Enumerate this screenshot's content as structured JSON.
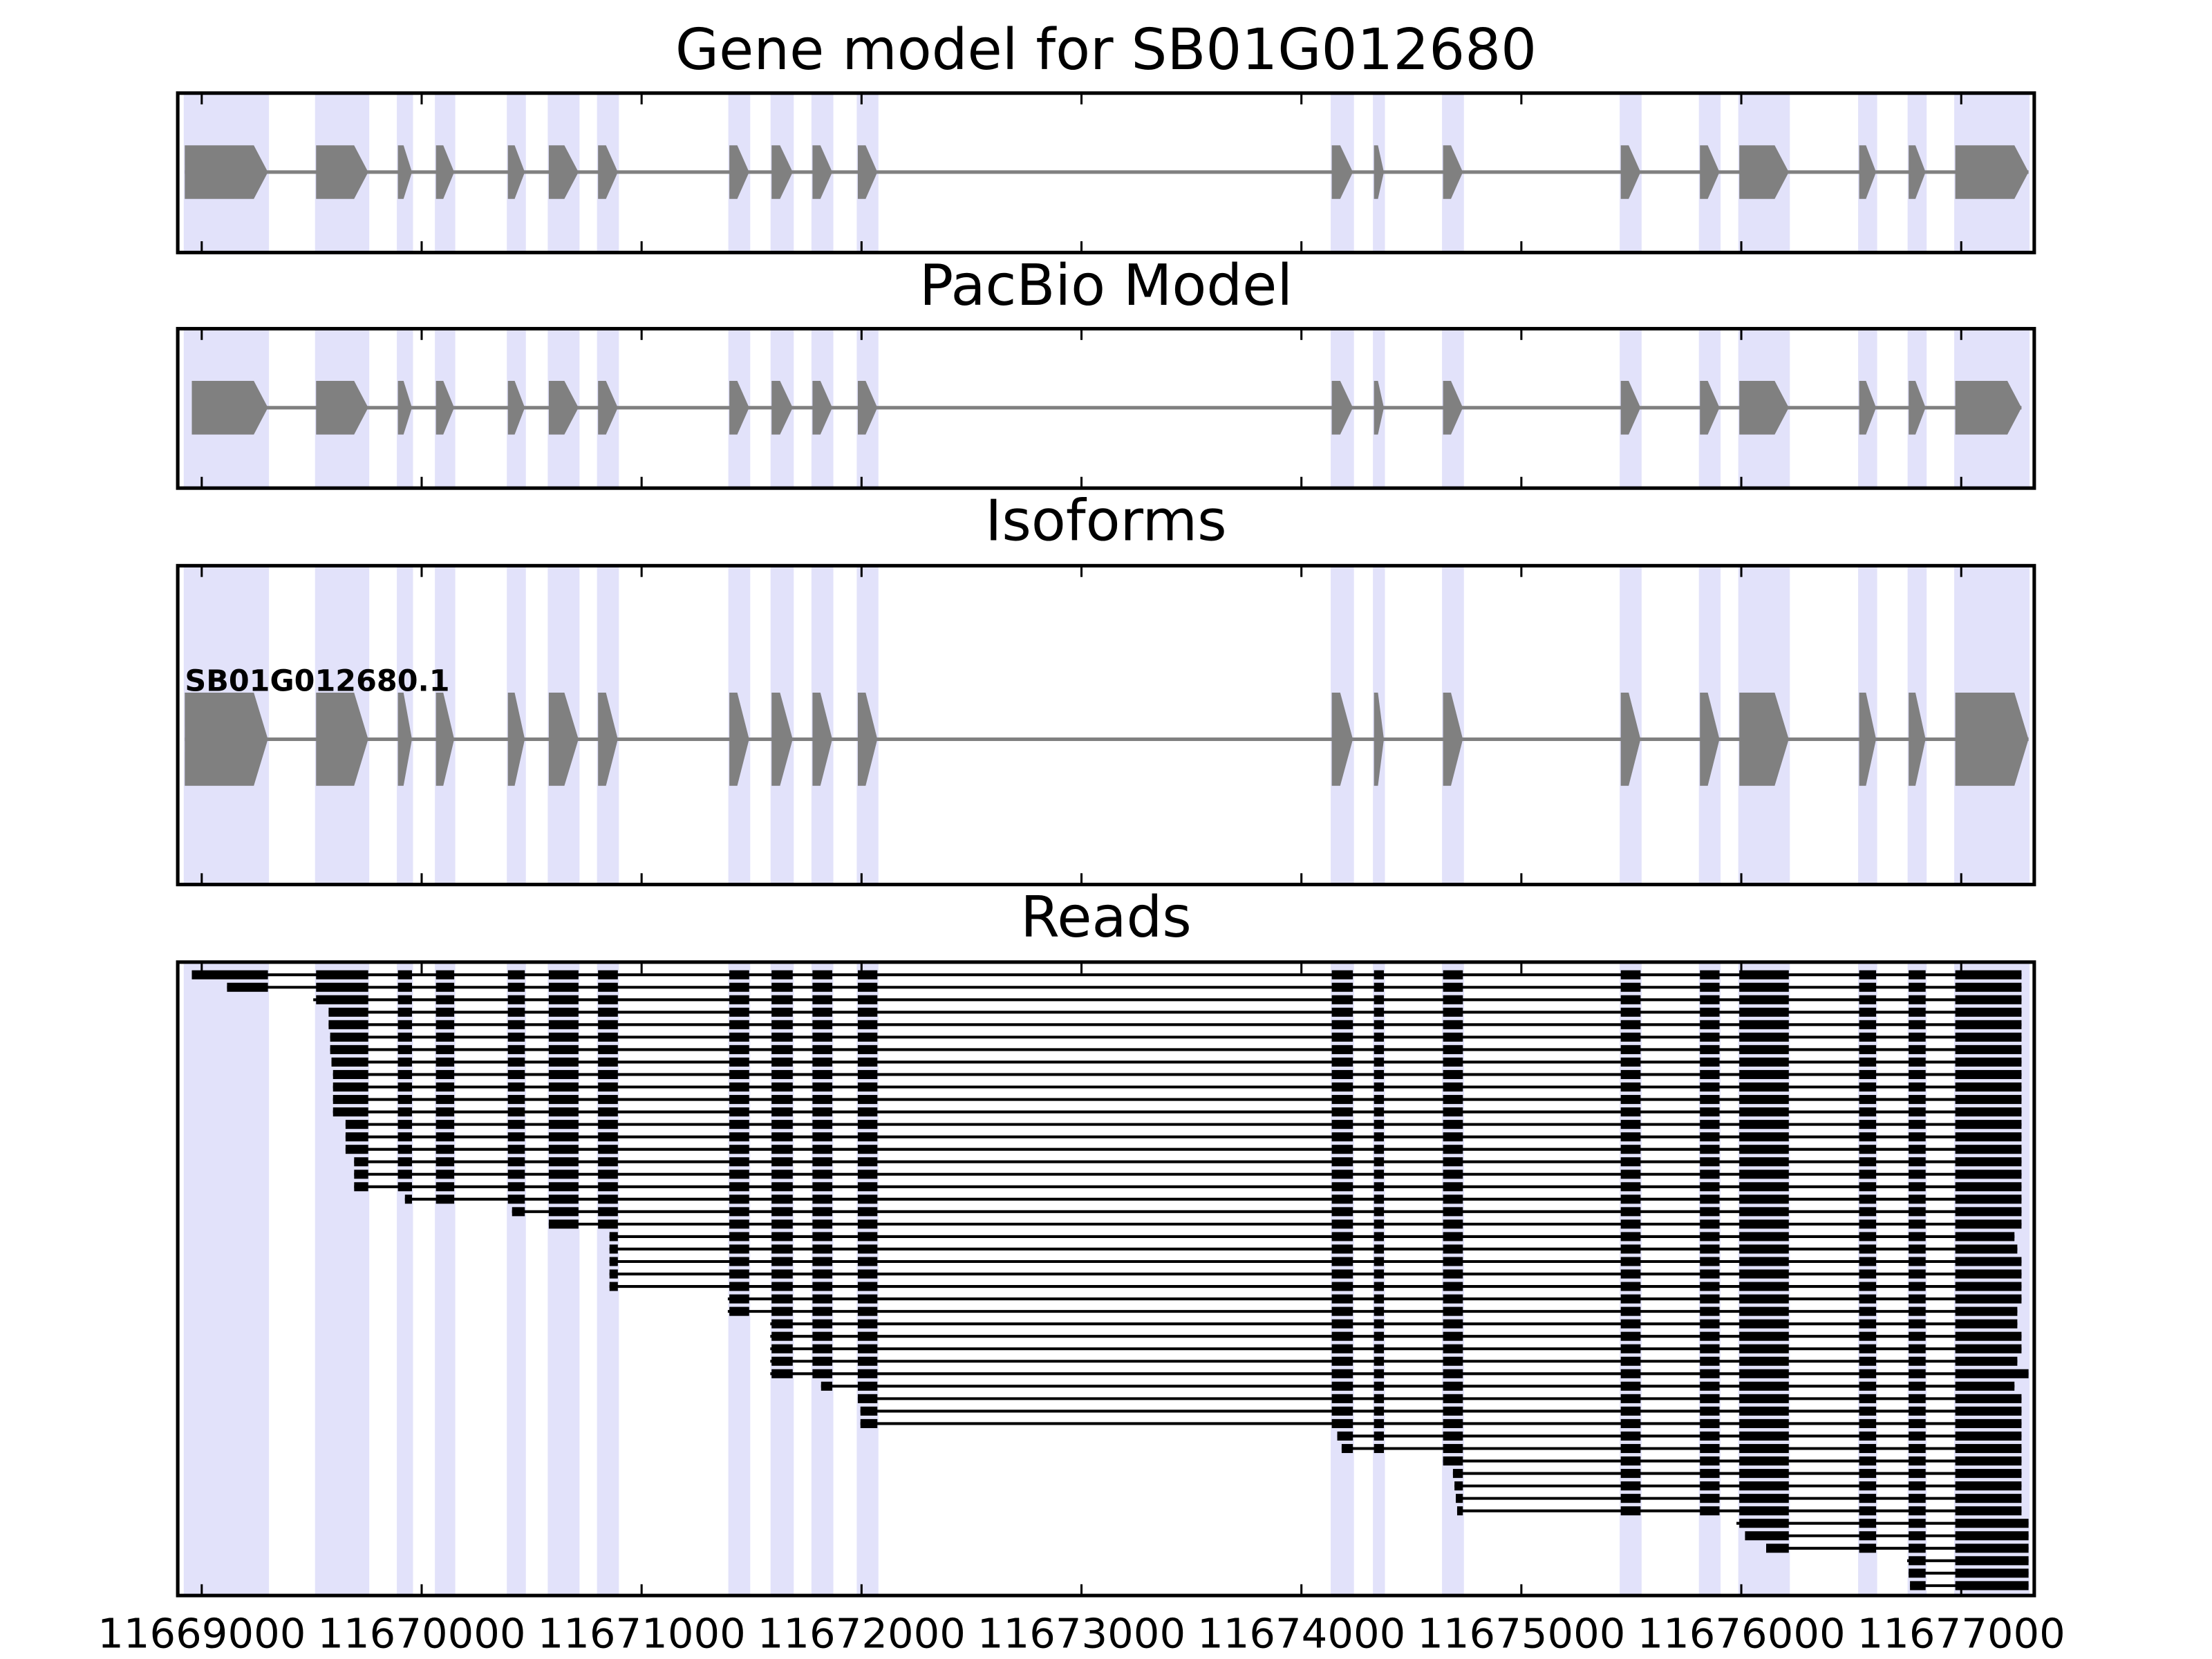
{
  "chart_data": [
    {
      "type": "gene_model",
      "title": "Gene model for SB01G012680",
      "color": "#808080",
      "shade_color": "#e2e2fa",
      "exons": [
        [
          11668923,
          11669301
        ],
        [
          11669520,
          11669757
        ],
        [
          11669892,
          11669956
        ],
        [
          11670065,
          11670148
        ],
        [
          11670392,
          11670469
        ],
        [
          11670578,
          11670713
        ],
        [
          11670802,
          11670892
        ],
        [
          11671399,
          11671489
        ],
        [
          11671591,
          11671687
        ],
        [
          11671777,
          11671867
        ],
        [
          11671983,
          11672072
        ],
        [
          11674138,
          11674234
        ],
        [
          11674330,
          11674375
        ],
        [
          11674644,
          11674734
        ],
        [
          11675452,
          11675542
        ],
        [
          11675812,
          11675901
        ],
        [
          11675991,
          11676216
        ],
        [
          11676536,
          11676613
        ],
        [
          11676761,
          11676838
        ],
        [
          11676973,
          11677306
        ]
      ]
    },
    {
      "type": "gene_model",
      "title": "PacBio Model",
      "color": "#808080",
      "exons": [
        [
          11668955,
          11669301
        ],
        [
          11669520,
          11669757
        ],
        [
          11669892,
          11669956
        ],
        [
          11670065,
          11670148
        ],
        [
          11670392,
          11670469
        ],
        [
          11670578,
          11670713
        ],
        [
          11670802,
          11670892
        ],
        [
          11671399,
          11671489
        ],
        [
          11671591,
          11671687
        ],
        [
          11671777,
          11671867
        ],
        [
          11671983,
          11672072
        ],
        [
          11674138,
          11674234
        ],
        [
          11674330,
          11674375
        ],
        [
          11674644,
          11674734
        ],
        [
          11675452,
          11675542
        ],
        [
          11675812,
          11675901
        ],
        [
          11675991,
          11676216
        ],
        [
          11676536,
          11676613
        ],
        [
          11676761,
          11676838
        ],
        [
          11676973,
          11677274
        ]
      ]
    },
    {
      "type": "isoforms",
      "title": "Isoforms",
      "color": "#808080",
      "isoform_name": "SB01G012680.1",
      "exons": [
        [
          11668923,
          11669301
        ],
        [
          11669520,
          11669757
        ],
        [
          11669892,
          11669956
        ],
        [
          11670065,
          11670148
        ],
        [
          11670392,
          11670469
        ],
        [
          11670578,
          11670713
        ],
        [
          11670802,
          11670892
        ],
        [
          11671399,
          11671489
        ],
        [
          11671591,
          11671687
        ],
        [
          11671777,
          11671867
        ],
        [
          11671983,
          11672072
        ],
        [
          11674138,
          11674234
        ],
        [
          11674330,
          11674375
        ],
        [
          11674644,
          11674734
        ],
        [
          11675452,
          11675542
        ],
        [
          11675812,
          11675901
        ],
        [
          11675991,
          11676216
        ],
        [
          11676536,
          11676613
        ],
        [
          11676761,
          11676838
        ],
        [
          11676973,
          11677306
        ]
      ]
    },
    {
      "type": "reads",
      "title": "Reads",
      "color": "#000000",
      "xlim": [
        11668891,
        11677332
      ],
      "xticks": [
        11669000,
        11670000,
        11671000,
        11672000,
        11673000,
        11674000,
        11675000,
        11676000,
        11677000
      ],
      "reads": [
        [
          11668955,
          11677274
        ],
        [
          11669115,
          11677274
        ],
        [
          11669507,
          11677274
        ],
        [
          11669577,
          11677274
        ],
        [
          11669577,
          11677274
        ],
        [
          11669584,
          11677274
        ],
        [
          11669584,
          11677274
        ],
        [
          11669590,
          11677274
        ],
        [
          11669597,
          11677274
        ],
        [
          11669597,
          11677274
        ],
        [
          11669597,
          11677274
        ],
        [
          11669597,
          11677274
        ],
        [
          11669654,
          11677274
        ],
        [
          11669654,
          11677274
        ],
        [
          11669654,
          11677274
        ],
        [
          11669693,
          11677274
        ],
        [
          11669693,
          11677274
        ],
        [
          11669693,
          11677274
        ],
        [
          11669924,
          11677274
        ],
        [
          11670411,
          11677274
        ],
        [
          11670578,
          11677274
        ],
        [
          11670854,
          11677242
        ],
        [
          11670854,
          11677255
        ],
        [
          11670854,
          11677274
        ],
        [
          11670854,
          11677274
        ],
        [
          11670854,
          11677274
        ],
        [
          11671392,
          11677274
        ],
        [
          11671392,
          11677255
        ],
        [
          11671585,
          11677255
        ],
        [
          11671585,
          11677274
        ],
        [
          11671585,
          11677274
        ],
        [
          11671585,
          11677255
        ],
        [
          11671585,
          11677306
        ],
        [
          11671816,
          11677242
        ],
        [
          11671983,
          11677274
        ],
        [
          11671995,
          11677274
        ],
        [
          11671995,
          11677274
        ],
        [
          11674163,
          11677274
        ],
        [
          11674183,
          11677274
        ],
        [
          11674644,
          11677274
        ],
        [
          11674689,
          11677274
        ],
        [
          11674696,
          11677274
        ],
        [
          11674702,
          11677274
        ],
        [
          11674708,
          11677274
        ],
        [
          11675978,
          11677306
        ],
        [
          11676017,
          11677306
        ],
        [
          11676113,
          11677306
        ],
        [
          11676754,
          11677306
        ],
        [
          11676761,
          11677306
        ],
        [
          11676767,
          11677306
        ]
      ]
    }
  ]
}
